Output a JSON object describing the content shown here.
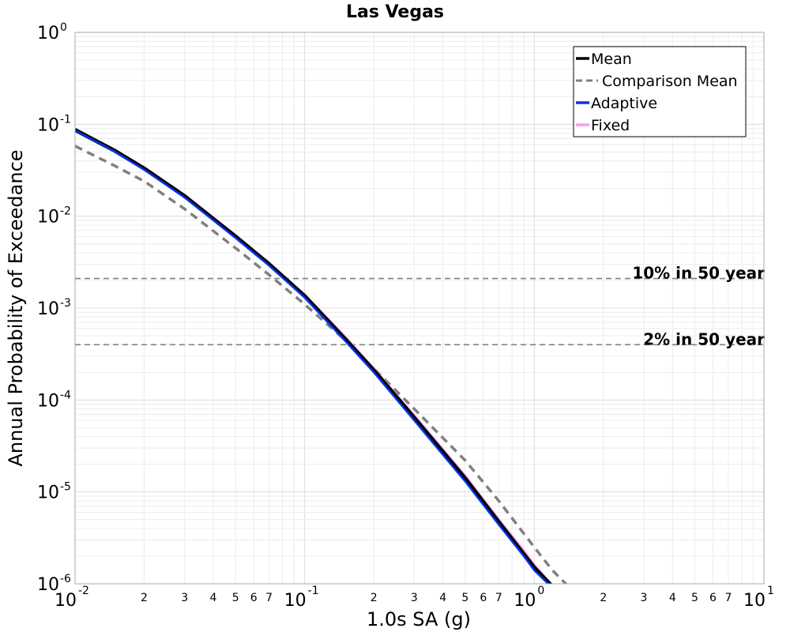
{
  "chart_data": {
    "type": "line",
    "title": "Las Vegas",
    "xlabel": "1.0s SA (g)",
    "ylabel": "Annual Probability of Exceedance",
    "xscale": "log",
    "yscale": "log",
    "xlim": [
      0.01,
      10
    ],
    "ylim": [
      1e-06,
      1
    ],
    "grid": true,
    "legend_position": "top-right",
    "x_major_ticks": [
      {
        "base": "10",
        "exp": "-2",
        "value": 0.01
      },
      {
        "base": "10",
        "exp": "-1",
        "value": 0.1
      },
      {
        "base": "10",
        "exp": "0",
        "value": 1
      },
      {
        "base": "10",
        "exp": "1",
        "value": 10
      }
    ],
    "x_minor_tick_labels": [
      "2",
      "3",
      "4",
      "5",
      "6",
      "7"
    ],
    "y_major_ticks": [
      {
        "base": "10",
        "exp": "0",
        "value": 1
      },
      {
        "base": "10",
        "exp": "-1",
        "value": 0.1
      },
      {
        "base": "10",
        "exp": "-2",
        "value": 0.01
      },
      {
        "base": "10",
        "exp": "-3",
        "value": 0.001
      },
      {
        "base": "10",
        "exp": "-4",
        "value": 0.0001
      },
      {
        "base": "10",
        "exp": "-5",
        "value": 1e-05
      },
      {
        "base": "10",
        "exp": "-6",
        "value": 1e-06
      }
    ],
    "reference_lines": [
      {
        "label": "10% in 50 year",
        "y": 0.0021,
        "color": "#808080"
      },
      {
        "label": "2% in 50 year",
        "y": 0.0004,
        "color": "#808080"
      }
    ],
    "series": [
      {
        "name": "Comparison Mean",
        "color": "#808080",
        "style": "dashed",
        "width": 3.5,
        "x": [
          0.01,
          0.015,
          0.02,
          0.03,
          0.05,
          0.07,
          0.1,
          0.15,
          0.2,
          0.3,
          0.5,
          0.7,
          1.0,
          1.2,
          1.4
        ],
        "y": [
          0.058,
          0.035,
          0.024,
          0.012,
          0.0045,
          0.0023,
          0.0011,
          0.00045,
          0.00022,
          8e-05,
          2.2e-05,
          8e-06,
          2.5e-06,
          1.4e-06,
          9.5e-07
        ]
      },
      {
        "name": "Fixed",
        "color": "#ff99ee",
        "style": "solid",
        "width": 3,
        "x": [
          0.01,
          0.015,
          0.02,
          0.03,
          0.05,
          0.07,
          0.1,
          0.15,
          0.2,
          0.3,
          0.5,
          0.7,
          0.9,
          1.0,
          1.2
        ],
        "y": [
          0.088,
          0.052,
          0.034,
          0.017,
          0.0062,
          0.0031,
          0.0014,
          0.00049,
          0.00022,
          6.8e-05,
          1.5e-05,
          5e-06,
          2.3e-06,
          1.6e-06,
          9.5e-07
        ]
      },
      {
        "name": "Mean",
        "color": "#000000",
        "style": "solid",
        "width": 5,
        "x": [
          0.01,
          0.015,
          0.02,
          0.03,
          0.05,
          0.07,
          0.1,
          0.15,
          0.2,
          0.3,
          0.5,
          0.7,
          0.9,
          1.0,
          1.2
        ],
        "y": [
          0.087,
          0.051,
          0.033,
          0.0165,
          0.006,
          0.003,
          0.00135,
          0.00046,
          0.00021,
          6.4e-05,
          1.4e-05,
          4.7e-06,
          2.1e-06,
          1.5e-06,
          9.3e-07
        ]
      },
      {
        "name": "Adaptive",
        "color": "#0033ee",
        "style": "solid",
        "width": 2.5,
        "x": [
          0.01,
          0.015,
          0.02,
          0.03,
          0.05,
          0.07,
          0.1,
          0.15,
          0.2,
          0.3,
          0.5,
          0.7,
          0.9,
          1.0,
          1.2
        ],
        "y": [
          0.086,
          0.05,
          0.032,
          0.016,
          0.0058,
          0.0029,
          0.0013,
          0.00044,
          0.0002,
          6e-05,
          1.3e-05,
          4.4e-06,
          2e-06,
          1.4e-06,
          9e-07
        ]
      }
    ],
    "legend": [
      {
        "label": "Mean",
        "color": "#000000",
        "style": "solid"
      },
      {
        "label": "Comparison Mean",
        "color": "#808080",
        "style": "dashed"
      },
      {
        "label": "Adaptive",
        "color": "#0033ee",
        "style": "solid"
      },
      {
        "label": "Fixed",
        "color": "#ff99ee",
        "style": "solid"
      }
    ]
  }
}
